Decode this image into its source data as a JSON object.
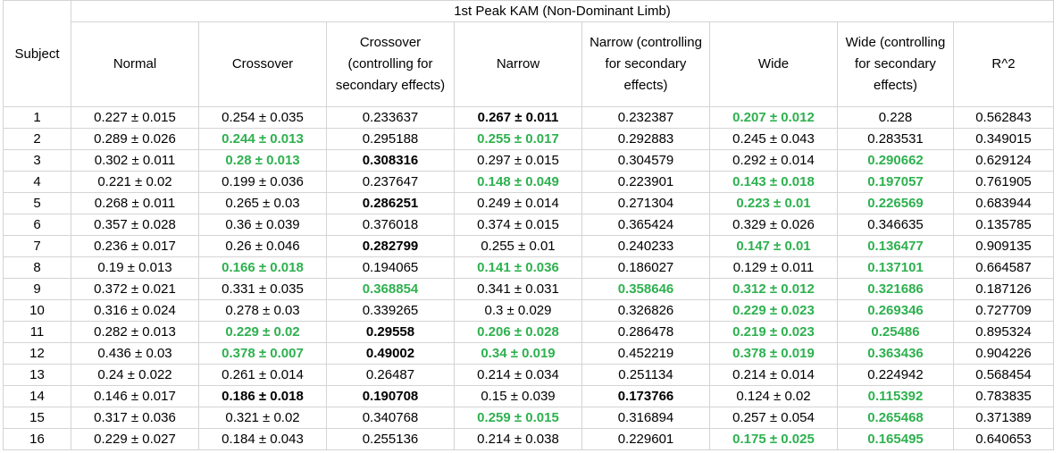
{
  "table": {
    "title": "1st Peak KAM (Non-Dominant Limb)",
    "subject_header": "Subject",
    "columns": [
      "Normal",
      "Crossover",
      "Crossover (controlling for secondary effects)",
      "Narrow",
      "Narrow (controlling for secondary effects)",
      "Wide",
      "Wide (controlling for secondary effects)",
      "R^2"
    ],
    "highlight_colors": {
      "green": "#2eb14f",
      "bold": "#000000"
    },
    "rows": [
      {
        "subject": "1",
        "cells": [
          {
            "v": "0.227 ± 0.015",
            "s": ""
          },
          {
            "v": "0.254 ± 0.035",
            "s": ""
          },
          {
            "v": "0.233637",
            "s": ""
          },
          {
            "v": "0.267 ± 0.011",
            "s": "bold"
          },
          {
            "v": "0.232387",
            "s": ""
          },
          {
            "v": "0.207 ± 0.012",
            "s": "green"
          },
          {
            "v": "0.228",
            "s": ""
          },
          {
            "v": "0.562843",
            "s": ""
          }
        ]
      },
      {
        "subject": "2",
        "cells": [
          {
            "v": "0.289 ± 0.026",
            "s": ""
          },
          {
            "v": "0.244 ± 0.013",
            "s": "green"
          },
          {
            "v": "0.295188",
            "s": ""
          },
          {
            "v": "0.255 ± 0.017",
            "s": "green"
          },
          {
            "v": "0.292883",
            "s": ""
          },
          {
            "v": "0.245 ± 0.043",
            "s": ""
          },
          {
            "v": "0.283531",
            "s": ""
          },
          {
            "v": "0.349015",
            "s": ""
          }
        ]
      },
      {
        "subject": "3",
        "cells": [
          {
            "v": "0.302 ± 0.011",
            "s": ""
          },
          {
            "v": "0.28 ± 0.013",
            "s": "green"
          },
          {
            "v": "0.308316",
            "s": "bold"
          },
          {
            "v": "0.297 ± 0.015",
            "s": ""
          },
          {
            "v": "0.304579",
            "s": ""
          },
          {
            "v": "0.292 ± 0.014",
            "s": ""
          },
          {
            "v": "0.290662",
            "s": "green"
          },
          {
            "v": "0.629124",
            "s": ""
          }
        ]
      },
      {
        "subject": "4",
        "cells": [
          {
            "v": "0.221 ± 0.02",
            "s": ""
          },
          {
            "v": "0.199 ± 0.036",
            "s": ""
          },
          {
            "v": "0.237647",
            "s": ""
          },
          {
            "v": "0.148 ± 0.049",
            "s": "green"
          },
          {
            "v": "0.223901",
            "s": ""
          },
          {
            "v": "0.143 ± 0.018",
            "s": "green"
          },
          {
            "v": "0.197057",
            "s": "green"
          },
          {
            "v": "0.761905",
            "s": ""
          }
        ]
      },
      {
        "subject": "5",
        "cells": [
          {
            "v": "0.268 ± 0.011",
            "s": ""
          },
          {
            "v": "0.265 ± 0.03",
            "s": ""
          },
          {
            "v": "0.286251",
            "s": "bold"
          },
          {
            "v": "0.249 ± 0.014",
            "s": ""
          },
          {
            "v": "0.271304",
            "s": ""
          },
          {
            "v": "0.223 ± 0.01",
            "s": "green"
          },
          {
            "v": "0.226569",
            "s": "green"
          },
          {
            "v": "0.683944",
            "s": ""
          }
        ]
      },
      {
        "subject": "6",
        "cells": [
          {
            "v": "0.357 ± 0.028",
            "s": ""
          },
          {
            "v": "0.36 ± 0.039",
            "s": ""
          },
          {
            "v": "0.376018",
            "s": ""
          },
          {
            "v": "0.374 ± 0.015",
            "s": ""
          },
          {
            "v": "0.365424",
            "s": ""
          },
          {
            "v": "0.329 ± 0.026",
            "s": ""
          },
          {
            "v": "0.346635",
            "s": ""
          },
          {
            "v": "0.135785",
            "s": ""
          }
        ]
      },
      {
        "subject": "7",
        "cells": [
          {
            "v": "0.236 ± 0.017",
            "s": ""
          },
          {
            "v": "0.26 ± 0.046",
            "s": ""
          },
          {
            "v": "0.282799",
            "s": "bold"
          },
          {
            "v": "0.255 ± 0.01",
            "s": ""
          },
          {
            "v": "0.240233",
            "s": ""
          },
          {
            "v": "0.147 ± 0.01",
            "s": "green"
          },
          {
            "v": "0.136477",
            "s": "green"
          },
          {
            "v": "0.909135",
            "s": ""
          }
        ]
      },
      {
        "subject": "8",
        "cells": [
          {
            "v": "0.19 ± 0.013",
            "s": ""
          },
          {
            "v": "0.166 ± 0.018",
            "s": "green"
          },
          {
            "v": "0.194065",
            "s": ""
          },
          {
            "v": "0.141 ± 0.036",
            "s": "green"
          },
          {
            "v": "0.186027",
            "s": ""
          },
          {
            "v": "0.129 ± 0.011",
            "s": ""
          },
          {
            "v": "0.137101",
            "s": "green"
          },
          {
            "v": "0.664587",
            "s": ""
          }
        ]
      },
      {
        "subject": "9",
        "cells": [
          {
            "v": "0.372 ± 0.021",
            "s": ""
          },
          {
            "v": "0.331 ± 0.035",
            "s": ""
          },
          {
            "v": "0.368854",
            "s": "green"
          },
          {
            "v": "0.341 ± 0.031",
            "s": ""
          },
          {
            "v": "0.358646",
            "s": "green"
          },
          {
            "v": "0.312 ± 0.012",
            "s": "green"
          },
          {
            "v": "0.321686",
            "s": "green"
          },
          {
            "v": "0.187126",
            "s": ""
          }
        ]
      },
      {
        "subject": "10",
        "cells": [
          {
            "v": "0.316 ± 0.024",
            "s": ""
          },
          {
            "v": "0.278 ± 0.03",
            "s": ""
          },
          {
            "v": "0.339265",
            "s": ""
          },
          {
            "v": "0.3 ± 0.029",
            "s": ""
          },
          {
            "v": "0.326826",
            "s": ""
          },
          {
            "v": "0.229 ± 0.023",
            "s": "green"
          },
          {
            "v": "0.269346",
            "s": "green"
          },
          {
            "v": "0.727709",
            "s": ""
          }
        ]
      },
      {
        "subject": "11",
        "cells": [
          {
            "v": "0.282 ± 0.013",
            "s": ""
          },
          {
            "v": "0.229 ± 0.02",
            "s": "green"
          },
          {
            "v": "0.29558",
            "s": "bold"
          },
          {
            "v": "0.206 ± 0.028",
            "s": "green"
          },
          {
            "v": "0.286478",
            "s": ""
          },
          {
            "v": "0.219 ± 0.023",
            "s": "green"
          },
          {
            "v": "0.25486",
            "s": "green"
          },
          {
            "v": "0.895324",
            "s": ""
          }
        ]
      },
      {
        "subject": "12",
        "cells": [
          {
            "v": "0.436 ± 0.03",
            "s": ""
          },
          {
            "v": "0.378 ± 0.007",
            "s": "green"
          },
          {
            "v": "0.49002",
            "s": "bold"
          },
          {
            "v": "0.34 ± 0.019",
            "s": "green"
          },
          {
            "v": "0.452219",
            "s": ""
          },
          {
            "v": "0.378 ± 0.019",
            "s": "green"
          },
          {
            "v": "0.363436",
            "s": "green"
          },
          {
            "v": "0.904226",
            "s": ""
          }
        ]
      },
      {
        "subject": "13",
        "cells": [
          {
            "v": "0.24 ± 0.022",
            "s": ""
          },
          {
            "v": "0.261 ± 0.014",
            "s": ""
          },
          {
            "v": "0.26487",
            "s": ""
          },
          {
            "v": "0.214 ± 0.034",
            "s": ""
          },
          {
            "v": "0.251134",
            "s": ""
          },
          {
            "v": "0.214 ± 0.014",
            "s": ""
          },
          {
            "v": "0.224942",
            "s": ""
          },
          {
            "v": "0.568454",
            "s": ""
          }
        ]
      },
      {
        "subject": "14",
        "cells": [
          {
            "v": "0.146 ± 0.017",
            "s": ""
          },
          {
            "v": "0.186 ± 0.018",
            "s": "bold"
          },
          {
            "v": "0.190708",
            "s": "bold"
          },
          {
            "v": "0.15 ± 0.039",
            "s": ""
          },
          {
            "v": "0.173766",
            "s": "bold"
          },
          {
            "v": "0.124 ± 0.02",
            "s": ""
          },
          {
            "v": "0.115392",
            "s": "green"
          },
          {
            "v": "0.783835",
            "s": ""
          }
        ]
      },
      {
        "subject": "15",
        "cells": [
          {
            "v": "0.317 ± 0.036",
            "s": ""
          },
          {
            "v": "0.321 ± 0.02",
            "s": ""
          },
          {
            "v": "0.340768",
            "s": ""
          },
          {
            "v": "0.259 ± 0.015",
            "s": "green"
          },
          {
            "v": "0.316894",
            "s": ""
          },
          {
            "v": "0.257 ± 0.054",
            "s": ""
          },
          {
            "v": "0.265468",
            "s": "green"
          },
          {
            "v": "0.371389",
            "s": ""
          }
        ]
      },
      {
        "subject": "16",
        "cells": [
          {
            "v": "0.229 ± 0.027",
            "s": ""
          },
          {
            "v": "0.184 ± 0.043",
            "s": ""
          },
          {
            "v": "0.255136",
            "s": ""
          },
          {
            "v": "0.214 ± 0.038",
            "s": ""
          },
          {
            "v": "0.229601",
            "s": ""
          },
          {
            "v": "0.175 ± 0.025",
            "s": "green"
          },
          {
            "v": "0.165495",
            "s": "green"
          },
          {
            "v": "0.640653",
            "s": ""
          }
        ]
      }
    ]
  }
}
